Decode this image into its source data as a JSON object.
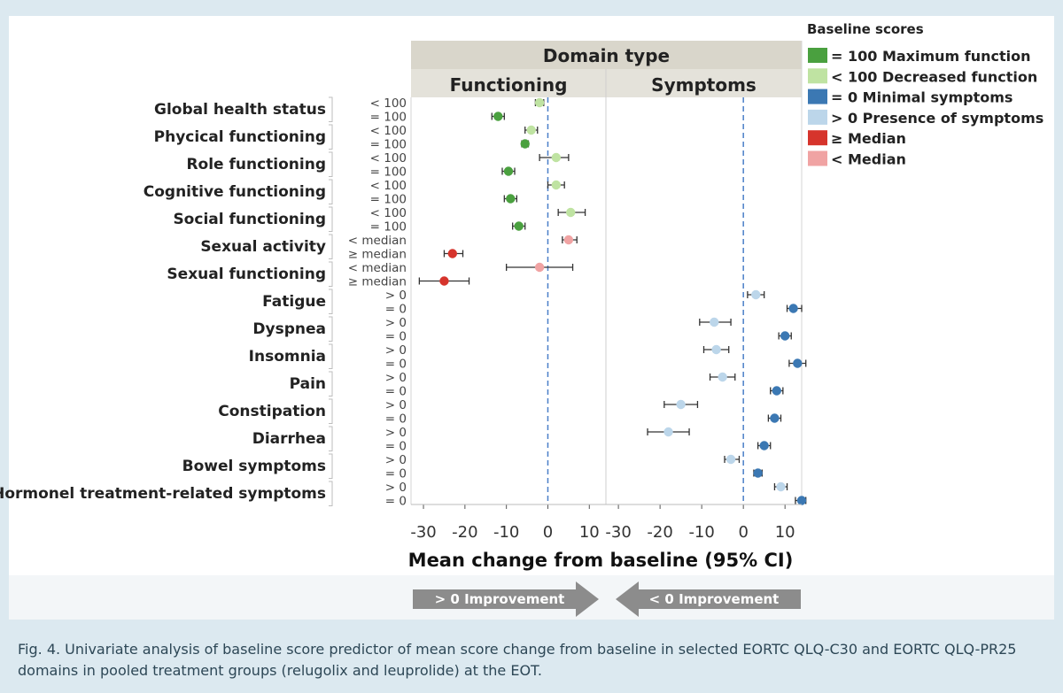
{
  "chart_data": {
    "type": "scatter",
    "domain_title": "Domain type",
    "facets": [
      "Functioning",
      "Symptoms"
    ],
    "xlabel": "Mean change from baseline (95% CI)",
    "xlim": [
      -33,
      14
    ],
    "xticks": [
      -30,
      -20,
      -10,
      0,
      10
    ],
    "reference_line_x": 0,
    "legend": {
      "title": "Baseline scores",
      "entries": [
        {
          "key": "max",
          "label": "= 100 Maximum function",
          "color": "#4aa03f"
        },
        {
          "key": "dec",
          "label": "< 100 Decreased function",
          "color": "#bfe3a2"
        },
        {
          "key": "min",
          "label": "= 0 Minimal symptoms",
          "color": "#3b78b3"
        },
        {
          "key": "pres",
          "label": "> 0 Presence of symptoms",
          "color": "#bcd6ea"
        },
        {
          "key": "gemed",
          "label": "≥ Median",
          "color": "#d6342c"
        },
        {
          "key": "ltmed",
          "label": "< Median",
          "color": "#f0a3a3"
        }
      ]
    },
    "categories": [
      {
        "name": "Global health status",
        "facet": 0,
        "sub": [
          {
            "label": "< 100",
            "value": -2,
            "ci": [
              -3,
              -1
            ],
            "key": "dec"
          },
          {
            "label": "= 100",
            "value": -12,
            "ci": [
              -13.5,
              -10.5
            ],
            "key": "max"
          }
        ]
      },
      {
        "name": "Phycical functioning",
        "facet": 0,
        "sub": [
          {
            "label": "< 100",
            "value": -4,
            "ci": [
              -5.5,
              -2.5
            ],
            "key": "dec"
          },
          {
            "label": "= 100",
            "value": -5.5,
            "ci": [
              -6.3,
              -4.7
            ],
            "key": "max"
          }
        ]
      },
      {
        "name": "Role functioning",
        "facet": 0,
        "sub": [
          {
            "label": "< 100",
            "value": 2,
            "ci": [
              -2,
              5
            ],
            "key": "dec"
          },
          {
            "label": "= 100",
            "value": -9.5,
            "ci": [
              -11,
              -8
            ],
            "key": "max"
          }
        ]
      },
      {
        "name": "Cognitive functioning",
        "facet": 0,
        "sub": [
          {
            "label": "< 100",
            "value": 2,
            "ci": [
              0,
              4
            ],
            "key": "dec"
          },
          {
            "label": "= 100",
            "value": -9,
            "ci": [
              -10.5,
              -7.5
            ],
            "key": "max"
          }
        ]
      },
      {
        "name": "Social functioning",
        "facet": 0,
        "sub": [
          {
            "label": "< 100",
            "value": 5.5,
            "ci": [
              2.5,
              9
            ],
            "key": "dec"
          },
          {
            "label": "= 100",
            "value": -7,
            "ci": [
              -8.5,
              -5.5
            ],
            "key": "max"
          }
        ]
      },
      {
        "name": "Sexual activity",
        "facet": 0,
        "sub": [
          {
            "label": "< median",
            "value": 5,
            "ci": [
              3.5,
              7
            ],
            "key": "ltmed"
          },
          {
            "label": "≥ median",
            "value": -23,
            "ci": [
              -25,
              -20.5
            ],
            "key": "gemed"
          }
        ]
      },
      {
        "name": "Sexual functioning",
        "facet": 0,
        "sub": [
          {
            "label": "< median",
            "value": -2,
            "ci": [
              -10,
              6
            ],
            "key": "ltmed"
          },
          {
            "label": "≥ median",
            "value": -25,
            "ci": [
              -31,
              -19
            ],
            "key": "gemed"
          }
        ]
      },
      {
        "name": "Fatigue",
        "facet": 1,
        "sub": [
          {
            "label": "> 0",
            "value": 3,
            "ci": [
              1,
              5
            ],
            "key": "pres"
          },
          {
            "label": "= 0",
            "value": 12,
            "ci": [
              10.5,
              14
            ],
            "key": "min"
          }
        ]
      },
      {
        "name": "Dyspnea",
        "facet": 1,
        "sub": [
          {
            "label": "> 0",
            "value": -7,
            "ci": [
              -10.5,
              -3
            ],
            "key": "pres"
          },
          {
            "label": "= 0",
            "value": 10,
            "ci": [
              8.5,
              11.5
            ],
            "key": "min"
          }
        ]
      },
      {
        "name": "Insomnia",
        "facet": 1,
        "sub": [
          {
            "label": "> 0",
            "value": -6.5,
            "ci": [
              -9.5,
              -3.5
            ],
            "key": "pres"
          },
          {
            "label": "= 0",
            "value": 13,
            "ci": [
              11,
              15
            ],
            "key": "min"
          }
        ]
      },
      {
        "name": "Pain",
        "facet": 1,
        "sub": [
          {
            "label": "> 0",
            "value": -5,
            "ci": [
              -8,
              -2
            ],
            "key": "pres"
          },
          {
            "label": "= 0",
            "value": 8,
            "ci": [
              6.5,
              9.5
            ],
            "key": "min"
          }
        ]
      },
      {
        "name": "Constipation",
        "facet": 1,
        "sub": [
          {
            "label": "> 0",
            "value": -15,
            "ci": [
              -19,
              -11
            ],
            "key": "pres"
          },
          {
            "label": "= 0",
            "value": 7.5,
            "ci": [
              6,
              9
            ],
            "key": "min"
          }
        ]
      },
      {
        "name": "Diarrhea",
        "facet": 1,
        "sub": [
          {
            "label": "> 0",
            "value": -18,
            "ci": [
              -23,
              -13
            ],
            "key": "pres"
          },
          {
            "label": "= 0",
            "value": 5,
            "ci": [
              3.5,
              6.5
            ],
            "key": "min"
          }
        ]
      },
      {
        "name": "Bowel symptoms",
        "facet": 1,
        "sub": [
          {
            "label": "> 0",
            "value": -3,
            "ci": [
              -4.5,
              -1
            ],
            "key": "pres"
          },
          {
            "label": "= 0",
            "value": 3.5,
            "ci": [
              2.5,
              4.5
            ],
            "key": "min"
          }
        ]
      },
      {
        "name": "Hormonel treatment-related symptoms",
        "facet": 1,
        "sub": [
          {
            "label": "> 0",
            "value": 9,
            "ci": [
              7.5,
              10.5
            ],
            "key": "pres"
          },
          {
            "label": "= 0",
            "value": 14,
            "ci": [
              12.5,
              15
            ],
            "key": "min"
          }
        ]
      }
    ]
  },
  "arrows": {
    "left_label": "> 0 Improvement",
    "right_label": "< 0 Improvement",
    "color": "#8c8c8c"
  },
  "caption": "Fig. 4. Univariate analysis of baseline score predictor of mean score change from baseline in selected EORTC QLQ-C30 and EORTC QLQ-PR25 domains in pooled treatment groups (relugolix and leuprolide) at the EOT."
}
